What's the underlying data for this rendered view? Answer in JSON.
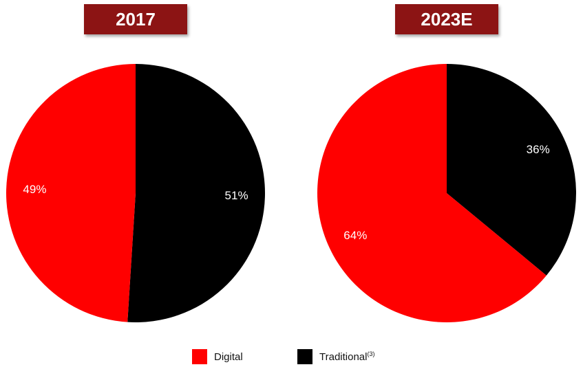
{
  "colors": {
    "digital": "#ff0000",
    "traditional": "#000000",
    "badge_bg": "#8c1414"
  },
  "legend": {
    "digital_label": "Digital",
    "traditional_label": "Traditional",
    "traditional_footnote": "(3)"
  },
  "chart_data": [
    {
      "type": "pie",
      "title": "2017",
      "slices": [
        {
          "label": "Traditional",
          "value": 51,
          "display": "51%"
        },
        {
          "label": "Digital",
          "value": 49,
          "display": "49%"
        }
      ]
    },
    {
      "type": "pie",
      "title": "2023E",
      "slices": [
        {
          "label": "Traditional",
          "value": 36,
          "display": "36%"
        },
        {
          "label": "Digital",
          "value": 64,
          "display": "64%"
        }
      ]
    }
  ]
}
